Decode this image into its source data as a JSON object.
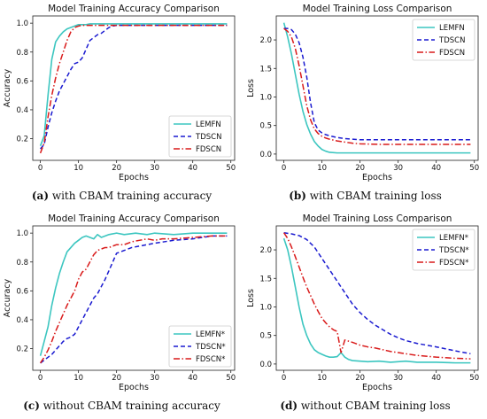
{
  "colors": {
    "LEMFN": "#3cc6c0",
    "TDSCN": "#1a1ad0",
    "FDSCN": "#d91a1a"
  },
  "chart_data": [
    {
      "type": "line",
      "caption_letter": "(a)",
      "caption_text": " with CBAM training accuracy",
      "title": "Model Training Accuracy Comparison",
      "xlabel": "Epochs",
      "ylabel": "Accuracy",
      "xlim": [
        -2,
        51
      ],
      "ylim": [
        0.05,
        1.05
      ],
      "xticks": [
        0,
        10,
        20,
        30,
        40,
        50
      ],
      "yticks": [
        0.2,
        0.4,
        0.6,
        0.8,
        1.0
      ],
      "ytick_labels": [
        "0.2",
        "0.4",
        "0.6",
        "0.8",
        "1.0"
      ],
      "legend": "bottom-right",
      "series": [
        {
          "name": "LEMFN",
          "x": [
            0,
            1,
            2,
            3,
            4,
            5,
            6,
            7,
            8,
            9,
            10,
            11,
            12,
            13,
            14,
            16,
            18,
            20,
            25,
            30,
            35,
            40,
            45,
            49
          ],
          "y": [
            0.15,
            0.22,
            0.5,
            0.75,
            0.87,
            0.91,
            0.94,
            0.96,
            0.97,
            0.98,
            0.99,
            0.99,
            0.99,
            0.995,
            0.995,
            0.995,
            0.995,
            0.995,
            0.995,
            0.995,
            0.995,
            0.995,
            0.995,
            0.995
          ]
        },
        {
          "name": "TDSCN",
          "x": [
            0,
            1,
            2,
            3,
            4,
            5,
            6,
            7,
            8,
            9,
            10,
            11,
            12,
            13,
            14,
            15,
            16,
            17,
            18,
            19,
            20,
            22,
            25,
            30,
            35,
            40,
            45,
            49
          ],
          "y": [
            0.13,
            0.16,
            0.28,
            0.38,
            0.46,
            0.53,
            0.58,
            0.63,
            0.68,
            0.72,
            0.73,
            0.76,
            0.82,
            0.88,
            0.9,
            0.92,
            0.93,
            0.95,
            0.97,
            0.98,
            0.985,
            0.985,
            0.985,
            0.985,
            0.985,
            0.985,
            0.985,
            0.985
          ]
        },
        {
          "name": "FDSCN",
          "x": [
            0,
            1,
            2,
            3,
            4,
            5,
            6,
            7,
            8,
            9,
            10,
            11,
            12,
            13,
            14,
            16,
            18,
            20,
            25,
            30,
            35,
            40,
            45,
            49
          ],
          "y": [
            0.1,
            0.17,
            0.35,
            0.5,
            0.62,
            0.72,
            0.8,
            0.88,
            0.94,
            0.97,
            0.98,
            0.985,
            0.985,
            0.985,
            0.985,
            0.985,
            0.985,
            0.985,
            0.985,
            0.985,
            0.985,
            0.985,
            0.985,
            0.985
          ]
        }
      ]
    },
    {
      "type": "line",
      "caption_letter": "(b)",
      "caption_text": " with CBAM training loss",
      "title": "Model Training Loss Comparison",
      "xlabel": "Epochs",
      "ylabel": "Loss",
      "xlim": [
        -2,
        51
      ],
      "ylim": [
        -0.11,
        2.42
      ],
      "xticks": [
        0,
        10,
        20,
        30,
        40,
        50
      ],
      "yticks": [
        0.0,
        0.5,
        1.0,
        1.5,
        2.0
      ],
      "ytick_labels": [
        "0.0",
        "0.5",
        "1.0",
        "1.5",
        "2.0"
      ],
      "legend": "top-right",
      "series": [
        {
          "name": "LEMFN",
          "x": [
            0,
            1,
            2,
            3,
            4,
            5,
            6,
            7,
            8,
            9,
            10,
            11,
            12,
            14,
            16,
            20,
            25,
            30,
            35,
            40,
            45,
            49
          ],
          "y": [
            2.3,
            2.05,
            1.75,
            1.4,
            1.05,
            0.75,
            0.52,
            0.35,
            0.22,
            0.14,
            0.08,
            0.05,
            0.03,
            0.02,
            0.02,
            0.02,
            0.02,
            0.02,
            0.02,
            0.02,
            0.02,
            0.02
          ]
        },
        {
          "name": "TDSCN",
          "x": [
            0,
            1,
            2,
            3,
            4,
            5,
            6,
            7,
            8,
            9,
            10,
            11,
            12,
            14,
            16,
            18,
            20,
            25,
            30,
            35,
            40,
            45,
            49
          ],
          "y": [
            2.2,
            2.2,
            2.18,
            2.1,
            1.95,
            1.7,
            1.35,
            0.9,
            0.55,
            0.42,
            0.37,
            0.34,
            0.32,
            0.29,
            0.27,
            0.26,
            0.25,
            0.25,
            0.25,
            0.25,
            0.25,
            0.25,
            0.25
          ]
        },
        {
          "name": "FDSCN",
          "x": [
            0,
            1,
            2,
            3,
            4,
            5,
            6,
            7,
            8,
            9,
            10,
            11,
            12,
            14,
            16,
            18,
            20,
            25,
            30,
            35,
            40,
            45,
            49
          ],
          "y": [
            2.2,
            2.15,
            2.05,
            1.85,
            1.55,
            1.2,
            0.85,
            0.6,
            0.44,
            0.36,
            0.31,
            0.28,
            0.26,
            0.23,
            0.21,
            0.19,
            0.18,
            0.17,
            0.17,
            0.17,
            0.17,
            0.17,
            0.17
          ]
        }
      ]
    },
    {
      "type": "line",
      "caption_letter": "(c)",
      "caption_text": " without CBAM training accuracy",
      "title": "Model Training Accuracy Comparison",
      "xlabel": "Epochs",
      "ylabel": "Accuracy",
      "xlim": [
        -2,
        51
      ],
      "ylim": [
        0.05,
        1.05
      ],
      "xticks": [
        0,
        10,
        20,
        30,
        40,
        50
      ],
      "yticks": [
        0.2,
        0.4,
        0.6,
        0.8,
        1.0
      ],
      "ytick_labels": [
        "0.2",
        "0.4",
        "0.6",
        "0.8",
        "1.0"
      ],
      "legend": "bottom-right",
      "series": [
        {
          "name": "LEMFN*",
          "x": [
            0,
            1,
            2,
            3,
            4,
            5,
            6,
            7,
            8,
            9,
            10,
            11,
            12,
            13,
            14,
            15,
            16,
            17,
            18,
            20,
            22,
            25,
            28,
            30,
            35,
            40,
            45,
            49
          ],
          "y": [
            0.15,
            0.25,
            0.35,
            0.5,
            0.62,
            0.72,
            0.8,
            0.87,
            0.9,
            0.93,
            0.95,
            0.97,
            0.98,
            0.97,
            0.96,
            0.99,
            0.97,
            0.98,
            0.99,
            1.0,
            0.99,
            1.0,
            0.99,
            1.0,
            0.99,
            1.0,
            1.0,
            1.0
          ]
        },
        {
          "name": "TDSCN*",
          "x": [
            0,
            1,
            2,
            3,
            4,
            5,
            6,
            7,
            8,
            9,
            10,
            11,
            12,
            13,
            14,
            15,
            16,
            17,
            18,
            19,
            20,
            22,
            24,
            26,
            28,
            30,
            35,
            40,
            45,
            49
          ],
          "y": [
            0.1,
            0.12,
            0.14,
            0.16,
            0.19,
            0.22,
            0.25,
            0.27,
            0.28,
            0.3,
            0.35,
            0.4,
            0.45,
            0.5,
            0.55,
            0.58,
            0.63,
            0.68,
            0.74,
            0.8,
            0.86,
            0.88,
            0.9,
            0.91,
            0.92,
            0.93,
            0.95,
            0.96,
            0.98,
            0.98
          ]
        },
        {
          "name": "FDSCN*",
          "x": [
            0,
            1,
            2,
            3,
            4,
            5,
            6,
            7,
            8,
            9,
            10,
            11,
            12,
            13,
            14,
            15,
            16,
            17,
            18,
            20,
            22,
            24,
            26,
            28,
            30,
            32,
            35,
            40,
            45,
            49
          ],
          "y": [
            0.1,
            0.14,
            0.19,
            0.25,
            0.32,
            0.38,
            0.44,
            0.5,
            0.55,
            0.6,
            0.68,
            0.73,
            0.75,
            0.8,
            0.85,
            0.88,
            0.89,
            0.9,
            0.9,
            0.92,
            0.92,
            0.94,
            0.95,
            0.96,
            0.95,
            0.96,
            0.96,
            0.97,
            0.98,
            0.98
          ]
        }
      ]
    },
    {
      "type": "line",
      "caption_letter": "(d)",
      "caption_text": " without CBAM training loss",
      "title": "Model Training Loss Comparison",
      "xlabel": "Epochs",
      "ylabel": "Loss",
      "xlim": [
        -2,
        51
      ],
      "ylim": [
        -0.11,
        2.42
      ],
      "xticks": [
        0,
        10,
        20,
        30,
        40,
        50
      ],
      "yticks": [
        0.0,
        0.5,
        1.0,
        1.5,
        2.0
      ],
      "ytick_labels": [
        "0.0",
        "0.5",
        "1.0",
        "1.5",
        "2.0"
      ],
      "legend": "top-right",
      "series": [
        {
          "name": "LEMFN*",
          "x": [
            0,
            1,
            2,
            3,
            4,
            5,
            6,
            7,
            8,
            9,
            10,
            11,
            12,
            13,
            14,
            15,
            16,
            17,
            18,
            20,
            22,
            25,
            28,
            30,
            32,
            35,
            40,
            45,
            49
          ],
          "y": [
            2.2,
            2.0,
            1.7,
            1.35,
            1.0,
            0.7,
            0.5,
            0.35,
            0.25,
            0.2,
            0.17,
            0.14,
            0.12,
            0.12,
            0.13,
            0.2,
            0.12,
            0.08,
            0.06,
            0.05,
            0.04,
            0.05,
            0.03,
            0.04,
            0.05,
            0.03,
            0.03,
            0.02,
            0.02
          ]
        },
        {
          "name": "TDSCN*",
          "x": [
            0,
            2,
            4,
            6,
            8,
            10,
            12,
            14,
            16,
            18,
            20,
            22,
            24,
            26,
            28,
            30,
            32,
            35,
            40,
            45,
            49
          ],
          "y": [
            2.3,
            2.28,
            2.25,
            2.18,
            2.05,
            1.85,
            1.65,
            1.45,
            1.25,
            1.05,
            0.9,
            0.78,
            0.68,
            0.6,
            0.52,
            0.46,
            0.41,
            0.36,
            0.3,
            0.23,
            0.18
          ]
        },
        {
          "name": "FDSCN*",
          "x": [
            0,
            1,
            2,
            3,
            4,
            5,
            6,
            7,
            8,
            9,
            10,
            11,
            12,
            13,
            14,
            15,
            16,
            17,
            18,
            20,
            22,
            24,
            26,
            28,
            30,
            32,
            35,
            40,
            45,
            49
          ],
          "y": [
            2.3,
            2.2,
            2.05,
            1.88,
            1.7,
            1.52,
            1.35,
            1.2,
            1.05,
            0.92,
            0.8,
            0.72,
            0.65,
            0.6,
            0.57,
            0.2,
            0.42,
            0.4,
            0.38,
            0.33,
            0.3,
            0.28,
            0.25,
            0.22,
            0.2,
            0.18,
            0.15,
            0.12,
            0.1,
            0.09
          ]
        }
      ]
    }
  ]
}
